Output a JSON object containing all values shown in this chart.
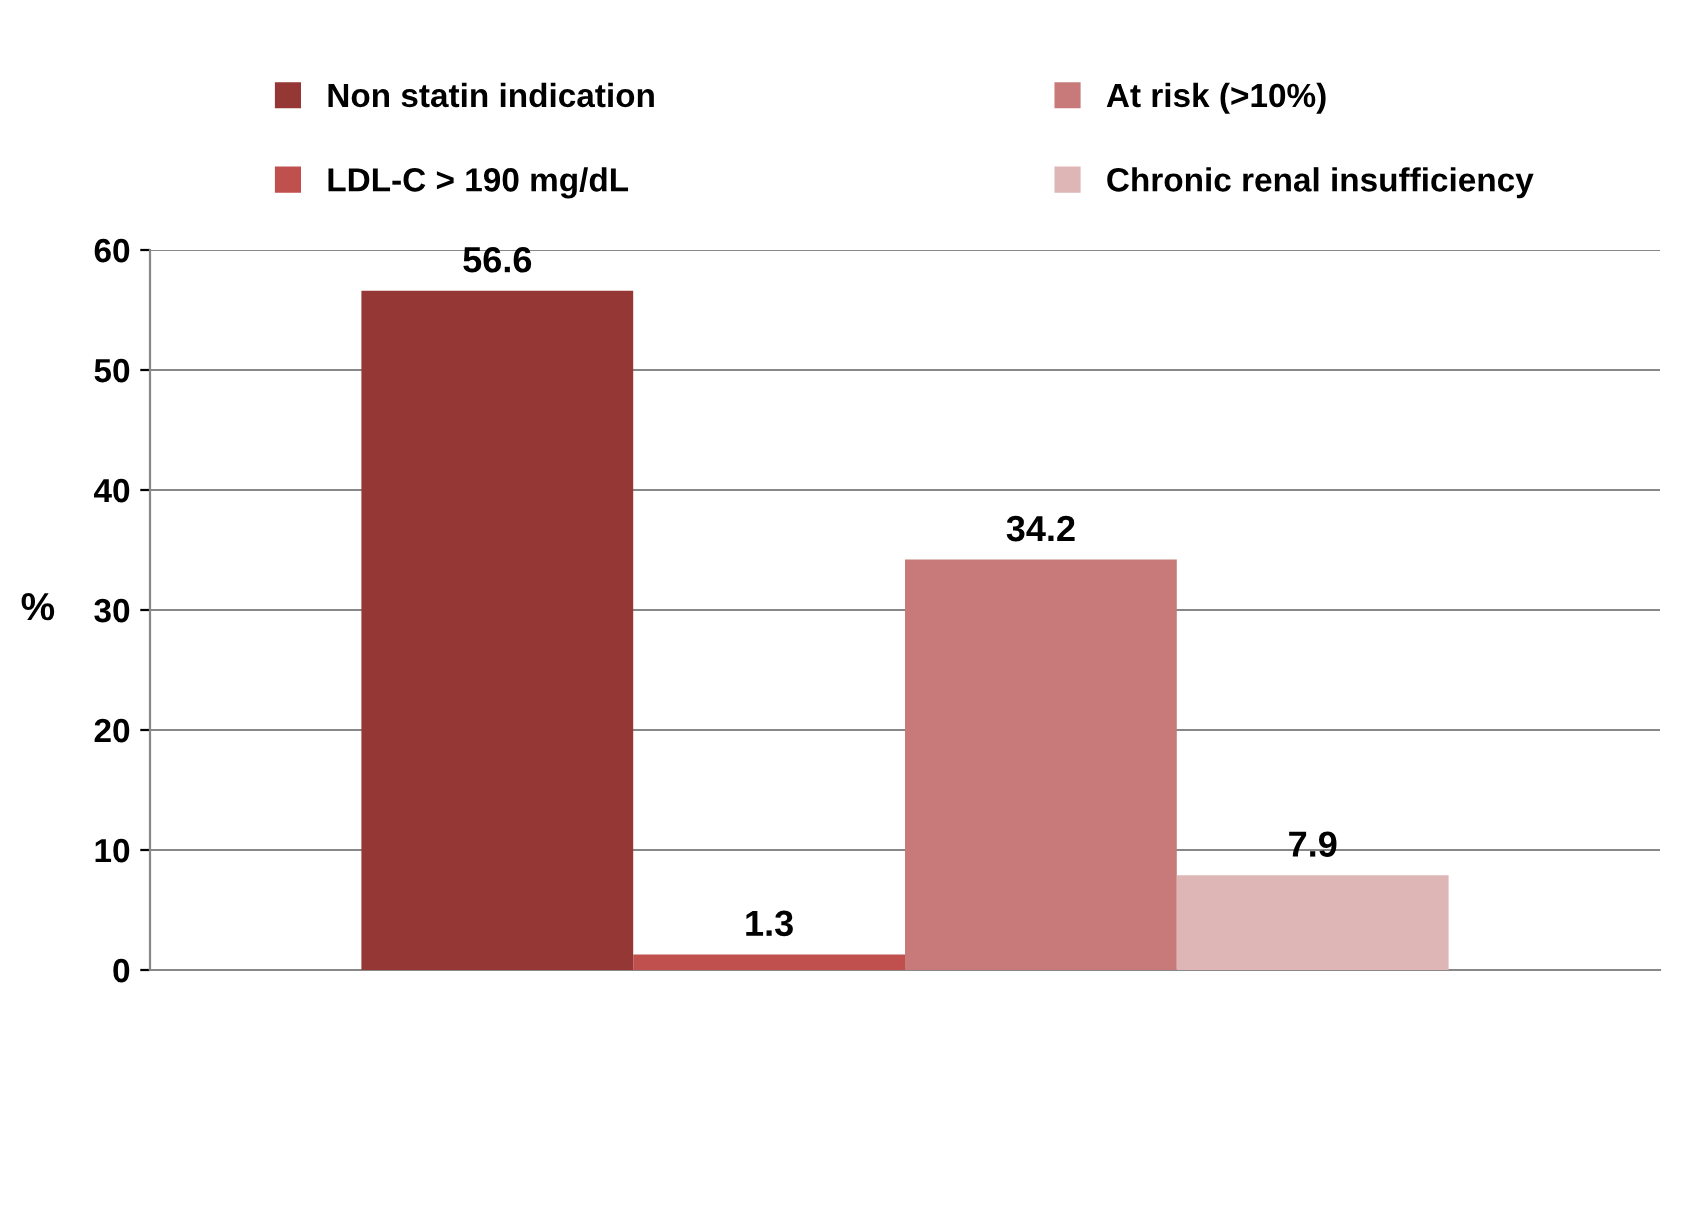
{
  "chart_data": {
    "type": "bar",
    "ylabel": "%",
    "categories": [
      null
    ],
    "series": [
      {
        "name": "Non statin indication",
        "color": "#953735",
        "values": [
          56.6
        ]
      },
      {
        "name": "LDL-C > 190 mg/dL",
        "color": "#c0504d",
        "values": [
          1.3
        ]
      },
      {
        "name": "At risk (>10%)",
        "color": "#c87a7a",
        "values": [
          34.2
        ]
      },
      {
        "name": "Chronic renal insufficiency",
        "color": "#dfb6b6",
        "values": [
          7.9
        ]
      }
    ],
    "ylim": [
      0,
      60
    ],
    "yticks": [
      0,
      10,
      20,
      30,
      40,
      50,
      60
    ],
    "grid": "y",
    "legend": "top",
    "data_labels": true
  }
}
